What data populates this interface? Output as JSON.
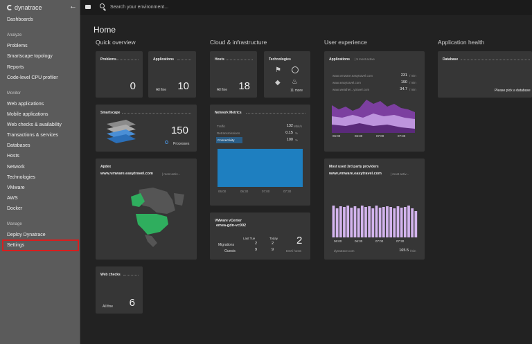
{
  "sidebar": {
    "logo": "dynatrace",
    "items": [
      {
        "label": "Dashboards"
      },
      {
        "section": "Analyze"
      },
      {
        "label": "Problems"
      },
      {
        "label": "Smartscape topology"
      },
      {
        "label": "Reports"
      },
      {
        "label": "Code-level CPU profiler"
      },
      {
        "section": "Monitor"
      },
      {
        "label": "Web applications"
      },
      {
        "label": "Mobile applications"
      },
      {
        "label": "Web checks & availability"
      },
      {
        "label": "Transactions & services"
      },
      {
        "label": "Databases"
      },
      {
        "label": "Hosts"
      },
      {
        "label": "Network"
      },
      {
        "label": "Technologies"
      },
      {
        "label": "VMware"
      },
      {
        "label": "AWS"
      },
      {
        "label": "Docker"
      },
      {
        "section": "Manage"
      },
      {
        "label": "Deploy Dynatrace"
      },
      {
        "label": "Settings"
      }
    ]
  },
  "topbar": {
    "search_placeholder": "Search your environment..."
  },
  "page": {
    "title": "Home"
  },
  "columns": [
    "Quick overview",
    "Cloud & infrastructure",
    "User experience",
    "Application health"
  ],
  "tiles": {
    "problems": {
      "title": "Problems",
      "value": "0"
    },
    "applications": {
      "title": "Applications",
      "status": "All fine",
      "value": "10"
    },
    "smartscape": {
      "title": "Smartscape",
      "value": "150",
      "label": "Processes"
    },
    "apdex": {
      "title": "Apdex",
      "app": "www.vmware.easytravel.com",
      "suffix": "| most activ..."
    },
    "webchecks": {
      "title": "Web checks",
      "status": "All fine",
      "value": "6"
    },
    "hosts": {
      "title": "Hosts",
      "status": "All fine",
      "value": "18"
    },
    "technologies": {
      "title": "Technologies",
      "more": "11 more"
    },
    "network": {
      "title": "Network Metrics",
      "rows": [
        {
          "label": "Traffic",
          "value": "132",
          "unit": "Mbit/s"
        },
        {
          "label": "Retransmissions",
          "value": "0.15",
          "unit": "%"
        },
        {
          "label": "Connectivity",
          "value": "100",
          "unit": "%"
        }
      ],
      "x_ticks": [
        "06:00",
        "06:30",
        "07:00",
        "07:30"
      ]
    },
    "vcenter": {
      "title": "VMware vCenter",
      "host": "emea-gdn-vc002",
      "col_last": "Last Tue",
      "col_today": "Today",
      "rows": [
        {
          "label": "Migrations",
          "last": "2",
          "today": "2"
        },
        {
          "label": "Guests",
          "last": "9",
          "today": "9"
        }
      ],
      "value": "2",
      "value_label": "ESXi hosts"
    },
    "user_apps": {
      "title": "Applications",
      "suffix": "| 5 most active",
      "rows": [
        {
          "name": "www.vmware.easytravel.com",
          "value": "231",
          "unit": "/ min"
        },
        {
          "name": "www.easytravel.com",
          "value": "190",
          "unit": "/ min"
        },
        {
          "name": "www.weather...ytravel.com",
          "value": "34.7",
          "unit": "/ min"
        }
      ],
      "x_ticks": [
        "06:00",
        "06:30",
        "07:00",
        "07:30"
      ]
    },
    "third_party": {
      "title": "Most used 3rd party providers",
      "app": "www.vmware.easytravel.com",
      "suffix": "| most activ...",
      "x_ticks": [
        "06:00",
        "06:30",
        "07:00",
        "07:30"
      ],
      "footer_name": "dynatrace.com",
      "footer_value": "165.5",
      "footer_unit": "/min"
    },
    "database": {
      "title": "Database",
      "message": "Please pick a database"
    }
  },
  "colors": {
    "sidebar": "#5b5b5b",
    "tile": "#363636",
    "network_fill": "#1e7fc0",
    "purple_dark": "#7c3fa0",
    "purple_light": "#c9a3e8",
    "map_green": "#2fae5e",
    "highlight": "#d81e1e"
  }
}
